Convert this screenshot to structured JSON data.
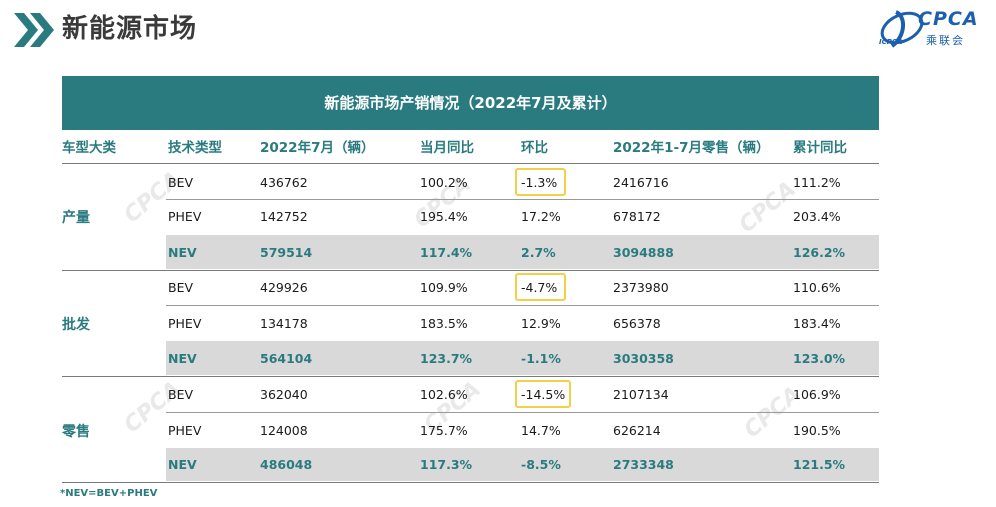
{
  "header": {
    "title": "新能源市场",
    "logo_text": "CPCA",
    "logo_sub": "乘联会",
    "logo_small": "ICPCR"
  },
  "table": {
    "title": "新能源市场产销情况（2022年7月及累计）",
    "columns": [
      "车型大类",
      "技术类型",
      "2022年7月（辆）",
      "当月同比",
      "环比",
      "2022年1-7月零售（辆）",
      "累计同比"
    ],
    "groups": [
      {
        "category": "产量",
        "rows": [
          {
            "type": "BEV",
            "month": "436762",
            "yoy": "100.2%",
            "mom": "-1.3%",
            "ytd": "2416716",
            "ytd_yoy": "111.2%"
          },
          {
            "type": "PHEV",
            "month": "142752",
            "yoy": "195.4%",
            "mom": "17.2%",
            "ytd": "678172",
            "ytd_yoy": "203.4%"
          },
          {
            "type": "NEV",
            "month": "579514",
            "yoy": "117.4%",
            "mom": "2.7%",
            "ytd": "3094888",
            "ytd_yoy": "126.2%"
          }
        ]
      },
      {
        "category": "批发",
        "rows": [
          {
            "type": "BEV",
            "month": "429926",
            "yoy": "109.9%",
            "mom": "-4.7%",
            "ytd": "2373980",
            "ytd_yoy": "110.6%"
          },
          {
            "type": "PHEV",
            "month": "134178",
            "yoy": "183.5%",
            "mom": "12.9%",
            "ytd": "656378",
            "ytd_yoy": "183.4%"
          },
          {
            "type": "NEV",
            "month": "564104",
            "yoy": "123.7%",
            "mom": "-1.1%",
            "ytd": "3030358",
            "ytd_yoy": "123.0%"
          }
        ]
      },
      {
        "category": "零售",
        "rows": [
          {
            "type": "BEV",
            "month": "362040",
            "yoy": "102.6%",
            "mom": "-14.5%",
            "ytd": "2107134",
            "ytd_yoy": "106.9%"
          },
          {
            "type": "PHEV",
            "month": "124008",
            "yoy": "175.7%",
            "mom": "14.7%",
            "ytd": "626214",
            "ytd_yoy": "190.5%"
          },
          {
            "type": "NEV",
            "month": "486048",
            "yoy": "117.3%",
            "mom": "-8.5%",
            "ytd": "2733348",
            "ytd_yoy": "121.5%"
          }
        ]
      }
    ]
  },
  "footnote": "*NEV=BEV+PHEV",
  "colors": {
    "accent": "#2a7b7f",
    "nev_band": "#d9d9d9",
    "highlight_box": "#f2d048",
    "logo_blue": "#1b5fae"
  }
}
